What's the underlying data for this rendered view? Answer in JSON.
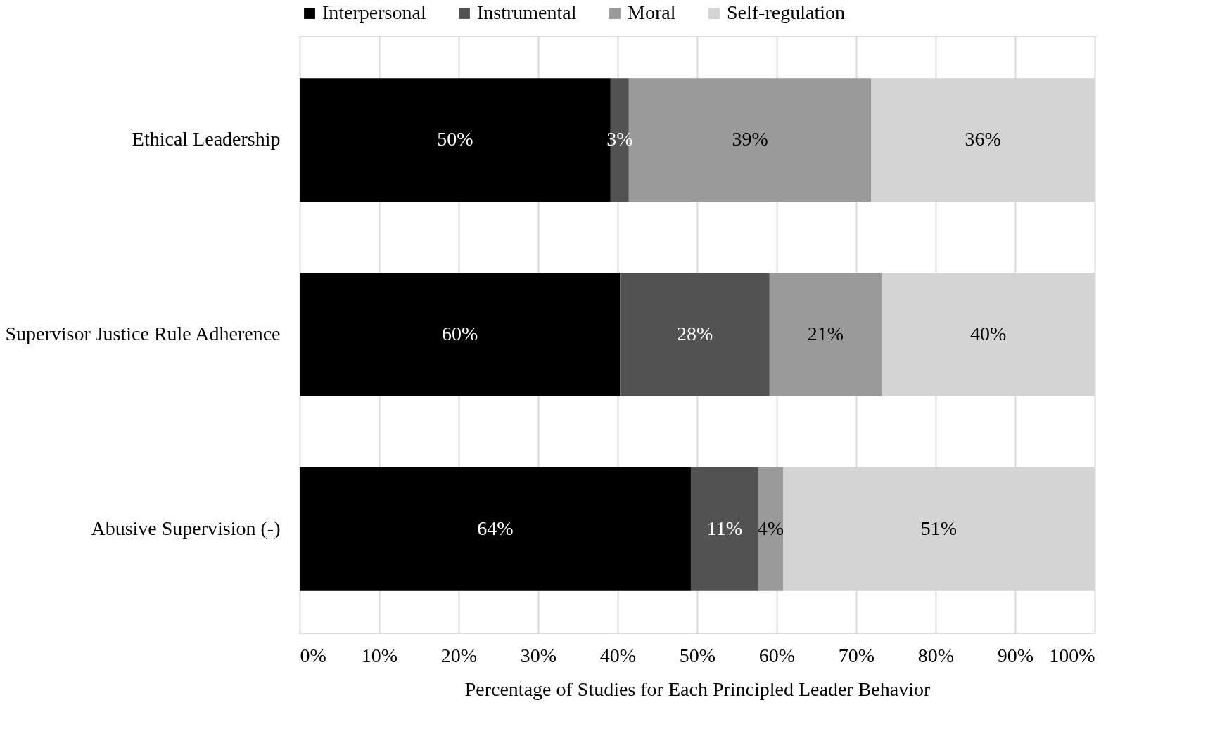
{
  "chart_data": {
    "type": "bar",
    "orientation": "horizontal",
    "stacked": true,
    "xlabel": "Percentage of Studies for Each Principled Leader Behavior",
    "categories": [
      "Ethical Leadership",
      "Supervisor Justice Rule Adherence",
      "Abusive Supervision (-)"
    ],
    "series": [
      {
        "name": "Interpersonal",
        "color": "#000000",
        "values": [
          39.1,
          40.3,
          49.2
        ]
      },
      {
        "name": "Instrumental",
        "color": "#525252",
        "values": [
          2.3,
          18.8,
          8.5
        ]
      },
      {
        "name": "Moral",
        "color": "#9a9a9a",
        "values": [
          30.5,
          14.1,
          3.1
        ]
      },
      {
        "name": "Self-regulation",
        "color": "#d4d4d4",
        "values": [
          28.1,
          26.8,
          39.2
        ]
      }
    ],
    "annotations": [
      "50%",
      "3%",
      "39%",
      "36%",
      "60%",
      "28%",
      "21%",
      "40%",
      "64%",
      "11%",
      "4%",
      "51%"
    ],
    "xlim": [
      0,
      100
    ],
    "xticks": [
      {
        "value": 0,
        "label": "0%"
      },
      {
        "value": 10,
        "label": "10%"
      },
      {
        "value": 20,
        "label": "20%"
      },
      {
        "value": 30,
        "label": "30%"
      },
      {
        "value": 40,
        "label": "40%"
      },
      {
        "value": 50,
        "label": "50%"
      },
      {
        "value": 60,
        "label": "60%"
      },
      {
        "value": 70,
        "label": "70%"
      },
      {
        "value": 80,
        "label": "80%"
      },
      {
        "value": 90,
        "label": "90%"
      },
      {
        "value": 100,
        "label": "100%"
      }
    ],
    "grid": "x",
    "legend": "top"
  }
}
